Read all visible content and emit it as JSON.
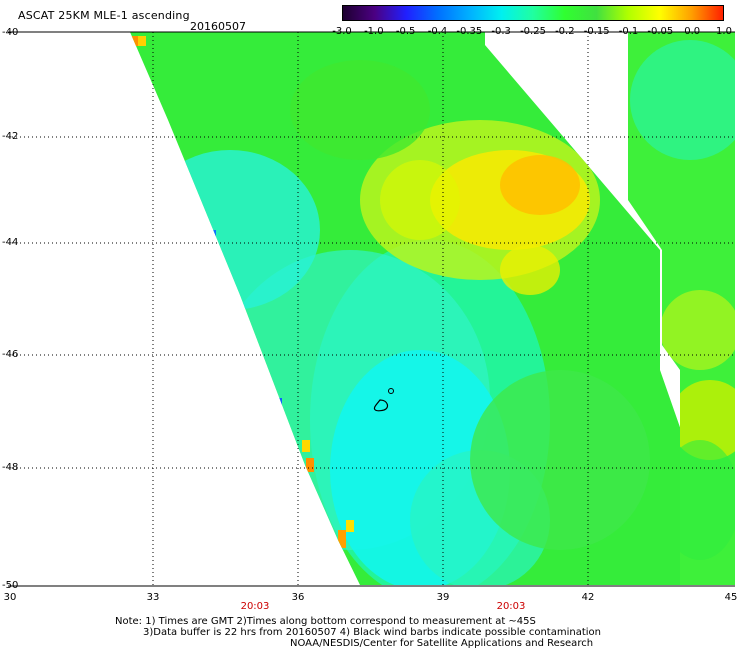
{
  "title": "ASCAT 25KM MLE-1 ascending",
  "date": "20160507",
  "colorbar": {
    "labels": [
      "-3.0",
      "-1.0",
      "-0.5",
      "-0.4",
      "-0.35",
      "-0.3",
      "-0.25",
      "-0.2",
      "-0.15",
      "-0.1",
      "-0.05",
      "0.0",
      "1.0"
    ],
    "colors": [
      "#1e0030",
      "#4b0082",
      "#2020ff",
      "#0070ff",
      "#00b0ff",
      "#00f0f0",
      "#20ffa0",
      "#30ff30",
      "#40e040",
      "#b0ff00",
      "#ffff00",
      "#ffa000",
      "#ff2000"
    ]
  },
  "axes": {
    "lat_labels": [
      "-40",
      "-42",
      "-44",
      "-46",
      "-48",
      "-50"
    ],
    "lon_labels": [
      "30",
      "33",
      "36",
      "39",
      "42",
      "45"
    ],
    "time_labels": [
      "20:03",
      "20:03"
    ]
  },
  "notes": {
    "line1": "Note: 1) Times are GMT 2)Times along bottom correspond to measurement at ~45S",
    "line2": "3)Data buffer is 22 hrs from 20160507 4) Black wind barbs indicate possible contamination",
    "line3": "NOAA/NESDIS/Center for Satellite Applications and Research"
  }
}
